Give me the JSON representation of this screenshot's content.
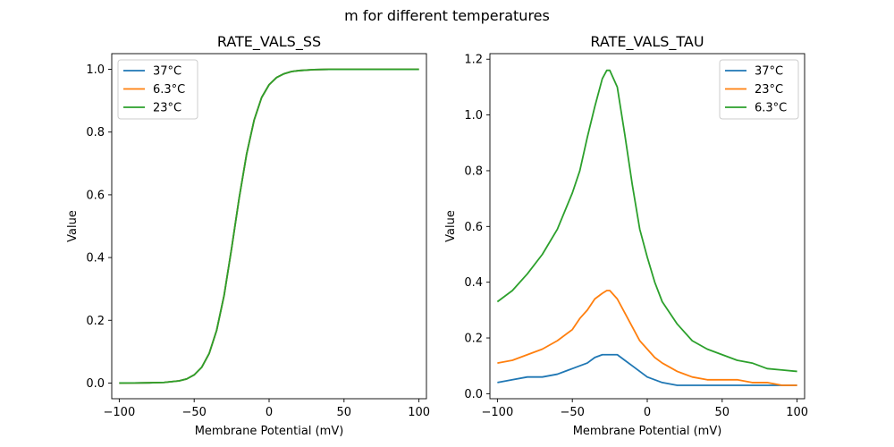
{
  "figure": {
    "suptitle": "m for different temperatures"
  },
  "chart_data": [
    {
      "type": "line",
      "title": "RATE_VALS_SS",
      "xlabel": "Membrane Potential (mV)",
      "ylabel": "Value",
      "xlim": [
        -105,
        105
      ],
      "ylim": [
        -0.05,
        1.05
      ],
      "xticks": [
        -100,
        -50,
        0,
        50,
        100
      ],
      "yticks": [
        0.0,
        0.2,
        0.4,
        0.6,
        0.8,
        1.0
      ],
      "xtick_labels": [
        "−100",
        "−50",
        "0",
        "50",
        "100"
      ],
      "ytick_labels": [
        "0.0",
        "0.2",
        "0.4",
        "0.6",
        "0.8",
        "1.0"
      ],
      "legend_position": "top-left",
      "x": [
        -100,
        -90,
        -80,
        -70,
        -60,
        -55,
        -50,
        -45,
        -40,
        -35,
        -30,
        -25,
        -20,
        -15,
        -10,
        -5,
        0,
        5,
        10,
        15,
        20,
        30,
        40,
        50,
        60,
        70,
        80,
        90,
        100
      ],
      "series": [
        {
          "name": "37°C",
          "color": "#1f77b4",
          "values": [
            0.0001,
            0.0003,
            0.0008,
            0.002,
            0.007,
            0.013,
            0.026,
            0.05,
            0.094,
            0.168,
            0.28,
            0.43,
            0.589,
            0.73,
            0.838,
            0.91,
            0.951,
            0.974,
            0.986,
            0.993,
            0.996,
            0.999,
            1.0,
            1.0,
            1.0,
            1.0,
            1.0,
            1.0,
            1.0
          ]
        },
        {
          "name": "6.3°C",
          "color": "#ff7f0e",
          "values": [
            0.0001,
            0.0003,
            0.0008,
            0.002,
            0.007,
            0.013,
            0.026,
            0.05,
            0.094,
            0.168,
            0.28,
            0.43,
            0.589,
            0.73,
            0.838,
            0.91,
            0.951,
            0.974,
            0.986,
            0.993,
            0.996,
            0.999,
            1.0,
            1.0,
            1.0,
            1.0,
            1.0,
            1.0,
            1.0
          ]
        },
        {
          "name": "23°C",
          "color": "#2ca02c",
          "values": [
            0.0001,
            0.0003,
            0.0008,
            0.002,
            0.007,
            0.013,
            0.026,
            0.05,
            0.094,
            0.168,
            0.28,
            0.43,
            0.589,
            0.73,
            0.838,
            0.91,
            0.951,
            0.974,
            0.986,
            0.993,
            0.996,
            0.999,
            1.0,
            1.0,
            1.0,
            1.0,
            1.0,
            1.0,
            1.0
          ]
        }
      ]
    },
    {
      "type": "line",
      "title": "RATE_VALS_TAU",
      "xlabel": "Membrane Potential (mV)",
      "ylabel": "Value",
      "xlim": [
        -105,
        105
      ],
      "ylim": [
        -0.018,
        1.22
      ],
      "xticks": [
        -100,
        -50,
        0,
        50,
        100
      ],
      "yticks": [
        0.0,
        0.2,
        0.4,
        0.6,
        0.8,
        1.0,
        1.2
      ],
      "xtick_labels": [
        "−100",
        "−50",
        "0",
        "50",
        "100"
      ],
      "ytick_labels": [
        "0.0",
        "0.2",
        "0.4",
        "0.6",
        "0.8",
        "1.0",
        "1.2"
      ],
      "legend_position": "top-right",
      "x": [
        -100,
        -90,
        -80,
        -70,
        -60,
        -50,
        -45,
        -40,
        -35,
        -30,
        -27,
        -25,
        -20,
        -15,
        -10,
        -5,
        0,
        5,
        10,
        20,
        30,
        40,
        50,
        60,
        70,
        80,
        90,
        100
      ],
      "series": [
        {
          "name": "37°C",
          "color": "#1f77b4",
          "values": [
            0.04,
            0.05,
            0.06,
            0.06,
            0.07,
            0.09,
            0.1,
            0.11,
            0.13,
            0.14,
            0.14,
            0.14,
            0.14,
            0.12,
            0.1,
            0.08,
            0.06,
            0.05,
            0.04,
            0.03,
            0.03,
            0.03,
            0.03,
            0.03,
            0.03,
            0.03,
            0.03,
            0.03
          ]
        },
        {
          "name": "23°C",
          "color": "#ff7f0e",
          "values": [
            0.11,
            0.12,
            0.14,
            0.16,
            0.19,
            0.23,
            0.27,
            0.3,
            0.34,
            0.36,
            0.37,
            0.37,
            0.34,
            0.29,
            0.24,
            0.19,
            0.16,
            0.13,
            0.11,
            0.08,
            0.06,
            0.05,
            0.05,
            0.05,
            0.04,
            0.04,
            0.03,
            0.03
          ]
        },
        {
          "name": "6.3°C",
          "color": "#2ca02c",
          "values": [
            0.33,
            0.37,
            0.43,
            0.5,
            0.59,
            0.72,
            0.8,
            0.92,
            1.03,
            1.13,
            1.16,
            1.16,
            1.1,
            0.93,
            0.75,
            0.59,
            0.49,
            0.4,
            0.33,
            0.25,
            0.19,
            0.16,
            0.14,
            0.12,
            0.11,
            0.09,
            0.085,
            0.08
          ]
        }
      ]
    }
  ]
}
